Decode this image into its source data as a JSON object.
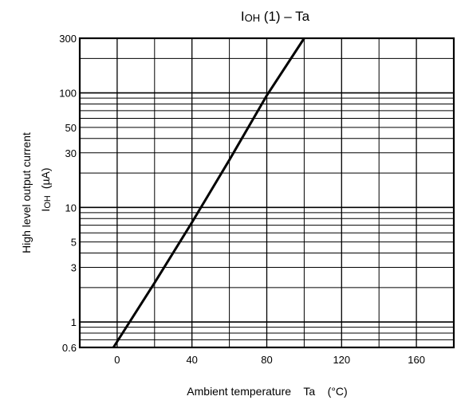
{
  "chart_data": {
    "type": "line",
    "title_main": "I",
    "title_sub": "OH",
    "title_rest": " (1) – Ta",
    "xlabel": "Ambient temperature    Ta    (°C)",
    "ylabel_line1": "High level output current",
    "ylabel_line2_main": "I",
    "ylabel_line2_sub": "OH",
    "ylabel_line2_unit": "(µA)",
    "x_ticks": [
      "0",
      "40",
      "80",
      "120",
      "160"
    ],
    "y_ticks": [
      "0.6",
      "1",
      "3",
      "5",
      "10",
      "30",
      "50",
      "100",
      "300"
    ],
    "xlim": [
      -20,
      180
    ],
    "ylim": [
      0.6,
      300
    ],
    "yscale": "log",
    "grid": true,
    "series": [
      {
        "x": [
          -2,
          20,
          40,
          60,
          80,
          100
        ],
        "y": [
          0.6,
          2.2,
          7.4,
          26,
          95,
          300
        ]
      }
    ]
  }
}
